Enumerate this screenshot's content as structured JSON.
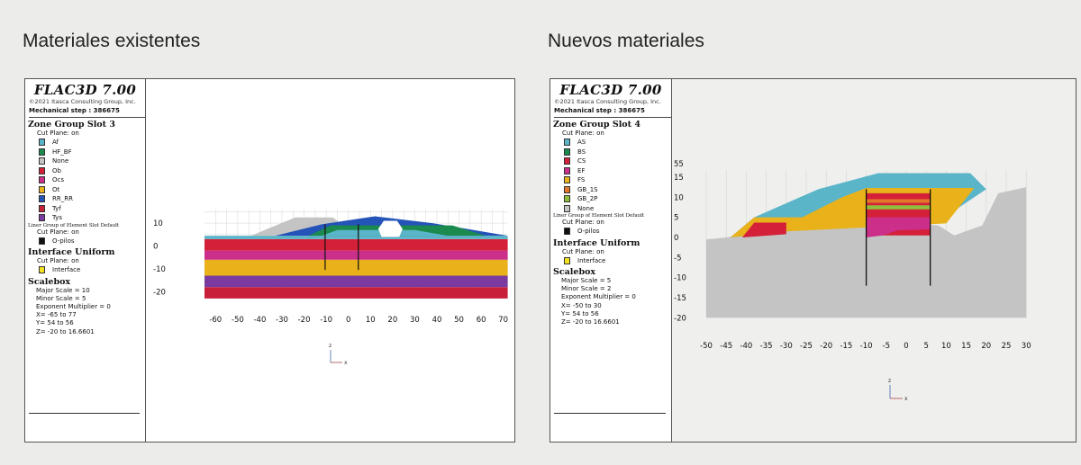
{
  "captions": {
    "left": "Materiales existentes",
    "right": "Nuevos materiales"
  },
  "left_panel": {
    "app_title": "FLAC3D 7.00",
    "copyright": "©2021 Itasca Consulting Group, Inc.",
    "step": "Mechanical step : 386675",
    "zone_group_title": "Zone Group Slot 3",
    "cut_plane": "Cut Plane: on",
    "zone_items": [
      {
        "label": "Af",
        "color": "#5ab5c9"
      },
      {
        "label": "HF_BF",
        "color": "#1b8a4f"
      },
      {
        "label": "None",
        "color": "#c4c4c4"
      },
      {
        "label": "Ob",
        "color": "#d42038"
      },
      {
        "label": "Ocs",
        "color": "#cc2f8a"
      },
      {
        "label": "Ot",
        "color": "#e9b21a"
      },
      {
        "label": "RR_RR",
        "color": "#2454b8"
      },
      {
        "label": "Tyf",
        "color": "#c8203a"
      },
      {
        "label": "Tys",
        "color": "#7b3aa0"
      }
    ],
    "liner_title": "Liner Group of Element Slot Default",
    "liner_cut_plane": "Cut Plane: on",
    "liner_item": {
      "label": "O-pilos",
      "color": "#111111"
    },
    "interface_title": "Interface Uniform",
    "interface_cut_plane": "Cut Plane: on",
    "interface_item": {
      "label": "Interface",
      "color": "#f2e21f"
    },
    "scalebox_title": "Scalebox",
    "scalebox_lines": [
      "Major Scale = 10",
      "Minor Scale = 5",
      "Exponent Multiplier = 0",
      "X= -65 to 77",
      "Y= 54 to 56",
      "Z= -20 to 16.6601"
    ],
    "y_ticks": [
      "10",
      "0",
      "-10",
      "-20"
    ],
    "x_ticks": [
      "-60",
      "-50",
      "-40",
      "-30",
      "-20",
      "-10",
      "0",
      "10",
      "20",
      "30",
      "40",
      "50",
      "60",
      "70"
    ],
    "axis_labels": {
      "z": "z",
      "x": "x"
    }
  },
  "right_panel": {
    "app_title": "FLAC3D 7.00",
    "copyright": "©2021 Itasca Consulting Group, Inc.",
    "step": "Mechanical step : 386675",
    "zone_group_title": "Zone Group Slot 4",
    "cut_plane": "Cut Plane: on",
    "zone_items": [
      {
        "label": "AS",
        "color": "#5ab5c9"
      },
      {
        "label": "BS",
        "color": "#1b8a4f"
      },
      {
        "label": "CS",
        "color": "#d42038"
      },
      {
        "label": "EF",
        "color": "#cc2f8a"
      },
      {
        "label": "FS",
        "color": "#e9b21a"
      },
      {
        "label": "GB_1S",
        "color": "#e07a2a"
      },
      {
        "label": "GB_2P",
        "color": "#8fbf3a"
      },
      {
        "label": "None",
        "color": "#c4c4c4"
      }
    ],
    "liner_title": "Liner Group of Element Slot Default",
    "liner_cut_plane": "Cut Plane: on",
    "liner_item": {
      "label": "O-pilos",
      "color": "#111111"
    },
    "interface_title": "Interface Uniform",
    "interface_cut_plane": "Cut Plane: on",
    "interface_item": {
      "label": "Interface",
      "color": "#f2e21f"
    },
    "scalebox_title": "Scalebox",
    "scalebox_lines": [
      "Major Scale = 5",
      "Minor Scale = 2",
      "Exponent Multiplier = 0",
      "X= -50 to 30",
      "Y= 54 to 56",
      "Z= -20 to 16.6601"
    ],
    "y_ticks": [
      "55",
      "15",
      "10",
      "5",
      "0",
      "-5",
      "-10",
      "-15",
      "-20"
    ],
    "x_ticks": [
      "-50",
      "-45",
      "-40",
      "-35",
      "-30",
      "-25",
      "-20",
      "-15",
      "-10",
      "-5",
      "0",
      "5",
      "10",
      "15",
      "20",
      "25",
      "30"
    ],
    "axis_labels": {
      "z": "z",
      "x": "x"
    }
  }
}
